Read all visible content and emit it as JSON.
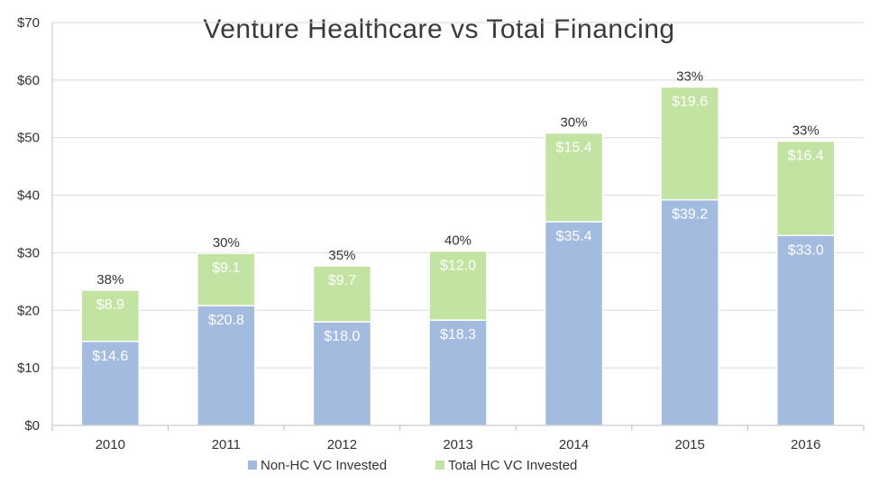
{
  "chart_data": {
    "type": "bar",
    "stacked": true,
    "title": "Venture Healthcare vs Total Financing",
    "categories": [
      "2010",
      "2011",
      "2012",
      "2013",
      "2014",
      "2015",
      "2016"
    ],
    "series": [
      {
        "name": "Non-HC VC Invested",
        "color": "#a4bbe0",
        "values": [
          14.6,
          20.8,
          18.0,
          18.3,
          35.4,
          39.2,
          33.0
        ],
        "labels": [
          "$14.6",
          "$20.8",
          "$18.0",
          "$18.3",
          "$35.4",
          "$39.2",
          "$33.0"
        ]
      },
      {
        "name": "Total HC VC Invested",
        "color": "#c3e3a2",
        "values": [
          8.9,
          9.1,
          9.7,
          12.0,
          15.4,
          19.6,
          16.4
        ],
        "labels": [
          "$8.9",
          "$9.1",
          "$9.7",
          "$12.0",
          "$15.4",
          "$19.6",
          "$16.4"
        ]
      }
    ],
    "share_labels": [
      "38%",
      "30%",
      "35%",
      "40%",
      "30%",
      "33%",
      "33%"
    ],
    "ylim": [
      0,
      70
    ],
    "yticks": [
      0,
      10,
      20,
      30,
      40,
      50,
      60,
      70
    ],
    "ytick_labels": [
      "$0",
      "$10",
      "$20",
      "$30",
      "$40",
      "$50",
      "$60",
      "$70"
    ],
    "xlabel": "",
    "ylabel": "",
    "grid": true,
    "legend_position": "bottom",
    "grid_color": "#d9d9d9"
  }
}
